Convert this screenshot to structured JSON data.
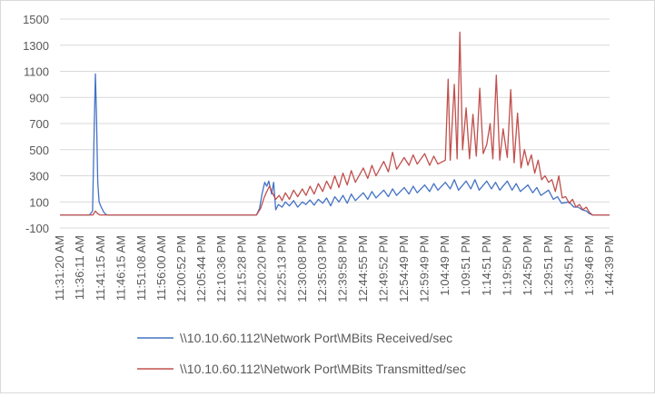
{
  "chart_data": {
    "type": "line",
    "title": "",
    "xlabel": "",
    "ylabel": "",
    "ylim": [
      -100,
      1500
    ],
    "yticks": [
      -100,
      100,
      300,
      500,
      700,
      900,
      1100,
      1300,
      1500
    ],
    "grid": "horizontal",
    "legend_position": "bottom",
    "x_tick_labels": [
      "11:31:20 AM",
      "11:36:11 AM",
      "11:41:15 AM",
      "11:46:15 AM",
      "11:51:08 AM",
      "11:56:00 AM",
      "12:00:52 PM",
      "12:05:44 PM",
      "12:10:36 PM",
      "12:15:28 PM",
      "12:20:20 PM",
      "12:25:13 PM",
      "12:30:08 PM",
      "12:35:03 PM",
      "12:39:58 PM",
      "12:44:55 PM",
      "12:49:52 PM",
      "12:54:49 PM",
      "12:59:49 PM",
      "1:04:49 PM",
      "1:09:51 PM",
      "1:14:51 PM",
      "1:19:50 PM",
      "1:24:50 PM",
      "1:29:51 PM",
      "1:34:51 PM",
      "1:39:46 PM",
      "1:44:39 PM"
    ],
    "x_range": [
      "11:31:20 AM",
      "1:44:39 PM"
    ],
    "series": [
      {
        "name": "\\\\10.10.60.112\\Network Port\\MBits Received/sec",
        "color": "#4472C4",
        "points": [
          [
            "11:31:20 AM",
            0
          ],
          [
            "11:38:30 AM",
            0
          ],
          [
            "11:39:15 AM",
            30
          ],
          [
            "11:39:40 AM",
            700
          ],
          [
            "11:39:55 AM",
            1080
          ],
          [
            "11:40:10 AM",
            800
          ],
          [
            "11:40:30 AM",
            250
          ],
          [
            "11:40:50 AM",
            100
          ],
          [
            "11:41:20 AM",
            60
          ],
          [
            "11:42:00 AM",
            20
          ],
          [
            "11:42:40 AM",
            0
          ],
          [
            "12:19:00 PM",
            0
          ],
          [
            "12:19:45 PM",
            50
          ],
          [
            "12:20:20 PM",
            160
          ],
          [
            "12:21:00 PM",
            250
          ],
          [
            "12:21:30 PM",
            220
          ],
          [
            "12:22:00 PM",
            260
          ],
          [
            "12:22:40 PM",
            160
          ],
          [
            "12:23:10 PM",
            250
          ],
          [
            "12:23:40 PM",
            40
          ],
          [
            "12:24:20 PM",
            80
          ],
          [
            "12:25:13 PM",
            60
          ],
          [
            "12:26:00 PM",
            100
          ],
          [
            "12:27:00 PM",
            70
          ],
          [
            "12:28:00 PM",
            110
          ],
          [
            "12:29:00 PM",
            60
          ],
          [
            "12:30:08 PM",
            100
          ],
          [
            "12:31:00 PM",
            80
          ],
          [
            "12:32:00 PM",
            115
          ],
          [
            "12:33:00 PM",
            75
          ],
          [
            "12:34:00 PM",
            120
          ],
          [
            "12:35:03 PM",
            90
          ],
          [
            "12:36:00 PM",
            130
          ],
          [
            "12:37:00 PM",
            70
          ],
          [
            "12:38:00 PM",
            140
          ],
          [
            "12:39:00 PM",
            100
          ],
          [
            "12:39:58 PM",
            150
          ],
          [
            "12:41:00 PM",
            90
          ],
          [
            "12:42:00 PM",
            160
          ],
          [
            "12:43:00 PM",
            110
          ],
          [
            "12:44:55 PM",
            170
          ],
          [
            "12:46:00 PM",
            120
          ],
          [
            "12:47:00 PM",
            180
          ],
          [
            "12:48:00 PM",
            130
          ],
          [
            "12:49:52 PM",
            190
          ],
          [
            "12:51:00 PM",
            140
          ],
          [
            "12:52:00 PM",
            200
          ],
          [
            "12:53:00 PM",
            150
          ],
          [
            "12:54:49 PM",
            210
          ],
          [
            "12:56:00 PM",
            160
          ],
          [
            "12:57:00 PM",
            220
          ],
          [
            "12:58:00 PM",
            170
          ],
          [
            "12:59:49 PM",
            230
          ],
          [
            "1:01:00 PM",
            180
          ],
          [
            "1:02:00 PM",
            240
          ],
          [
            "1:03:00 PM",
            190
          ],
          [
            "1:04:49 PM",
            250
          ],
          [
            "1:06:00 PM",
            200
          ],
          [
            "1:07:00 PM",
            270
          ],
          [
            "1:08:00 PM",
            190
          ],
          [
            "1:09:51 PM",
            260
          ],
          [
            "1:11:00 PM",
            200
          ],
          [
            "1:12:00 PM",
            270
          ],
          [
            "1:13:00 PM",
            190
          ],
          [
            "1:14:51 PM",
            260
          ],
          [
            "1:16:00 PM",
            200
          ],
          [
            "1:17:00 PM",
            250
          ],
          [
            "1:18:00 PM",
            190
          ],
          [
            "1:19:50 PM",
            260
          ],
          [
            "1:21:00 PM",
            190
          ],
          [
            "1:22:00 PM",
            240
          ],
          [
            "1:23:00 PM",
            180
          ],
          [
            "1:24:50 PM",
            230
          ],
          [
            "1:26:00 PM",
            170
          ],
          [
            "1:27:00 PM",
            210
          ],
          [
            "1:28:00 PM",
            150
          ],
          [
            "1:29:51 PM",
            190
          ],
          [
            "1:31:00 PM",
            120
          ],
          [
            "1:32:00 PM",
            140
          ],
          [
            "1:33:00 PM",
            90
          ],
          [
            "1:34:51 PM",
            100
          ],
          [
            "1:36:00 PM",
            60
          ],
          [
            "1:37:00 PM",
            60
          ],
          [
            "1:38:00 PM",
            40
          ],
          [
            "1:39:00 PM",
            30
          ],
          [
            "1:39:46 PM",
            10
          ],
          [
            "1:40:30 PM",
            0
          ],
          [
            "1:44:39 PM",
            0
          ]
        ]
      },
      {
        "name": "\\\\10.10.60.112\\Network Port\\MBits Transmitted/sec",
        "color": "#C0504D",
        "points": [
          [
            "11:31:20 AM",
            0
          ],
          [
            "11:39:20 AM",
            0
          ],
          [
            "11:39:55 AM",
            30
          ],
          [
            "11:40:30 AM",
            10
          ],
          [
            "11:41:00 AM",
            0
          ],
          [
            "12:19:00 PM",
            0
          ],
          [
            "12:20:00 PM",
            50
          ],
          [
            "12:20:50 PM",
            130
          ],
          [
            "12:21:30 PM",
            180
          ],
          [
            "12:22:10 PM",
            220
          ],
          [
            "12:22:50 PM",
            170
          ],
          [
            "12:23:40 PM",
            120
          ],
          [
            "12:24:30 PM",
            150
          ],
          [
            "12:25:13 PM",
            110
          ],
          [
            "12:26:00 PM",
            170
          ],
          [
            "12:27:00 PM",
            120
          ],
          [
            "12:28:00 PM",
            190
          ],
          [
            "12:29:00 PM",
            140
          ],
          [
            "12:30:08 PM",
            200
          ],
          [
            "12:31:00 PM",
            150
          ],
          [
            "12:32:00 PM",
            220
          ],
          [
            "12:33:00 PM",
            160
          ],
          [
            "12:34:00 PM",
            240
          ],
          [
            "12:35:03 PM",
            180
          ],
          [
            "12:36:00 PM",
            260
          ],
          [
            "12:37:00 PM",
            200
          ],
          [
            "12:38:00 PM",
            300
          ],
          [
            "12:39:00 PM",
            210
          ],
          [
            "12:39:58 PM",
            320
          ],
          [
            "12:41:00 PM",
            230
          ],
          [
            "12:42:00 PM",
            340
          ],
          [
            "12:43:00 PM",
            250
          ],
          [
            "12:44:55 PM",
            360
          ],
          [
            "12:46:00 PM",
            280
          ],
          [
            "12:47:00 PM",
            380
          ],
          [
            "12:48:00 PM",
            300
          ],
          [
            "12:49:52 PM",
            410
          ],
          [
            "12:51:00 PM",
            330
          ],
          [
            "12:52:00 PM",
            480
          ],
          [
            "12:53:00 PM",
            350
          ],
          [
            "12:54:49 PM",
            440
          ],
          [
            "12:56:00 PM",
            380
          ],
          [
            "12:57:00 PM",
            460
          ],
          [
            "12:58:00 PM",
            390
          ],
          [
            "12:59:49 PM",
            470
          ],
          [
            "1:01:00 PM",
            380
          ],
          [
            "1:02:00 PM",
            450
          ],
          [
            "1:03:00 PM",
            390
          ],
          [
            "1:04:49 PM",
            420
          ],
          [
            "1:05:30 PM",
            1040
          ],
          [
            "1:06:00 PM",
            420
          ],
          [
            "1:07:00 PM",
            1000
          ],
          [
            "1:07:40 PM",
            430
          ],
          [
            "1:08:20 PM",
            1400
          ],
          [
            "1:09:00 PM",
            500
          ],
          [
            "1:09:51 PM",
            820
          ],
          [
            "1:10:40 PM",
            430
          ],
          [
            "1:11:30 PM",
            770
          ],
          [
            "1:12:20 PM",
            450
          ],
          [
            "1:13:10 PM",
            970
          ],
          [
            "1:14:00 PM",
            470
          ],
          [
            "1:14:51 PM",
            540
          ],
          [
            "1:15:40 PM",
            700
          ],
          [
            "1:16:20 PM",
            430
          ],
          [
            "1:17:10 PM",
            1070
          ],
          [
            "1:18:00 PM",
            420
          ],
          [
            "1:18:50 PM",
            660
          ],
          [
            "1:19:50 PM",
            440
          ],
          [
            "1:20:40 PM",
            960
          ],
          [
            "1:21:30 PM",
            400
          ],
          [
            "1:22:20 PM",
            780
          ],
          [
            "1:23:10 PM",
            360
          ],
          [
            "1:24:00 PM",
            500
          ],
          [
            "1:24:50 PM",
            380
          ],
          [
            "1:25:40 PM",
            460
          ],
          [
            "1:26:30 PM",
            320
          ],
          [
            "1:27:20 PM",
            420
          ],
          [
            "1:28:10 PM",
            270
          ],
          [
            "1:29:00 PM",
            300
          ],
          [
            "1:29:51 PM",
            250
          ],
          [
            "1:30:40 PM",
            270
          ],
          [
            "1:31:30 PM",
            180
          ],
          [
            "1:32:20 PM",
            300
          ],
          [
            "1:33:10 PM",
            130
          ],
          [
            "1:34:00 PM",
            140
          ],
          [
            "1:34:51 PM",
            90
          ],
          [
            "1:35:40 PM",
            120
          ],
          [
            "1:36:30 PM",
            60
          ],
          [
            "1:37:20 PM",
            80
          ],
          [
            "1:38:10 PM",
            40
          ],
          [
            "1:39:00 PM",
            60
          ],
          [
            "1:39:46 PM",
            20
          ],
          [
            "1:40:30 PM",
            0
          ],
          [
            "1:44:39 PM",
            0
          ]
        ]
      }
    ]
  }
}
